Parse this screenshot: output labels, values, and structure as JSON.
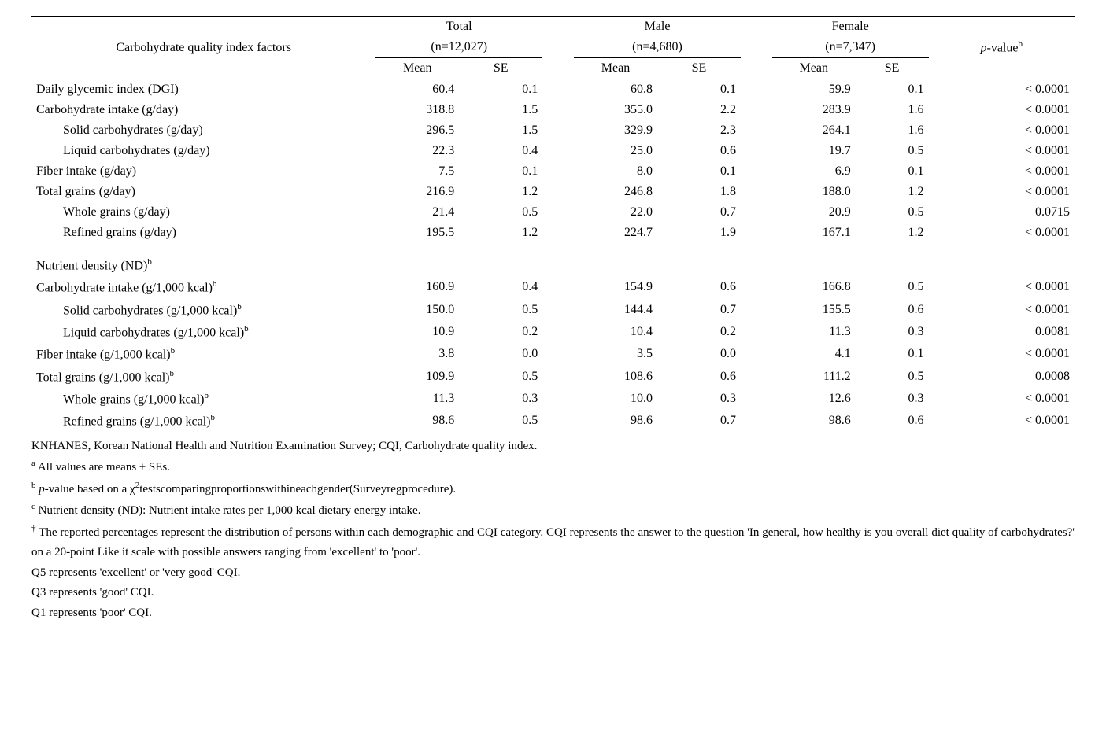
{
  "table": {
    "header": {
      "factors_label": "Carbohydrate quality index factors",
      "groups": {
        "total": {
          "name": "Total",
          "n": "(n=12,027)"
        },
        "male": {
          "name": "Male",
          "n": "(n=4,680)"
        },
        "female": {
          "name": "Female",
          "n": "(n=7,347)"
        }
      },
      "mean_label": "Mean",
      "se_label": "SE",
      "pvalue_label_prefix": "p",
      "pvalue_label_suffix": "-value",
      "pvalue_sup": "b"
    },
    "rows": [
      {
        "label": "Daily glycemic index (DGI)",
        "indent": 0,
        "sup": "",
        "t_m": "60.4",
        "t_s": "0.1",
        "m_m": "60.8",
        "m_s": "0.1",
        "f_m": "59.9",
        "f_s": "0.1",
        "p": "< 0.0001"
      },
      {
        "label": "Carbohydrate intake (g/day)",
        "indent": 0,
        "sup": "",
        "t_m": "318.8",
        "t_s": "1.5",
        "m_m": "355.0",
        "m_s": "2.2",
        "f_m": "283.9",
        "f_s": "1.6",
        "p": "< 0.0001"
      },
      {
        "label": "Solid carbohydrates (g/day)",
        "indent": 1,
        "sup": "",
        "t_m": "296.5",
        "t_s": "1.5",
        "m_m": "329.9",
        "m_s": "2.3",
        "f_m": "264.1",
        "f_s": "1.6",
        "p": "< 0.0001"
      },
      {
        "label": "Liquid carbohydrates (g/day)",
        "indent": 1,
        "sup": "",
        "t_m": "22.3",
        "t_s": "0.4",
        "m_m": "25.0",
        "m_s": "0.6",
        "f_m": "19.7",
        "f_s": "0.5",
        "p": "< 0.0001"
      },
      {
        "label": "Fiber intake (g/day)",
        "indent": 0,
        "sup": "",
        "t_m": "7.5",
        "t_s": "0.1",
        "m_m": "8.0",
        "m_s": "0.1",
        "f_m": "6.9",
        "f_s": "0.1",
        "p": "< 0.0001"
      },
      {
        "label": "Total grains (g/day)",
        "indent": 0,
        "sup": "",
        "t_m": "216.9",
        "t_s": "1.2",
        "m_m": "246.8",
        "m_s": "1.8",
        "f_m": "188.0",
        "f_s": "1.2",
        "p": "< 0.0001"
      },
      {
        "label": "Whole grains (g/day)",
        "indent": 1,
        "sup": "",
        "t_m": "21.4",
        "t_s": "0.5",
        "m_m": "22.0",
        "m_s": "0.7",
        "f_m": "20.9",
        "f_s": "0.5",
        "p": "0.0715"
      },
      {
        "label": "Refined grains (g/day)",
        "indent": 1,
        "sup": "",
        "t_m": "195.5",
        "t_s": "1.2",
        "m_m": "224.7",
        "m_s": "1.9",
        "f_m": "167.1",
        "f_s": "1.2",
        "p": "< 0.0001"
      }
    ],
    "section_header": {
      "label": "Nutrient density (ND)",
      "sup": "b"
    },
    "rows2": [
      {
        "label": "Carbohydrate intake (g/1,000    kcal)",
        "indent": 0,
        "sup": "b",
        "t_m": "160.9",
        "t_s": "0.4",
        "m_m": "154.9",
        "m_s": "0.6",
        "f_m": "166.8",
        "f_s": "0.5",
        "p": "< 0.0001"
      },
      {
        "label": "Solid carbohydrates (g/1,000 kcal)",
        "indent": 1,
        "sup": "b",
        "t_m": "150.0",
        "t_s": "0.5",
        "m_m": "144.4",
        "m_s": "0.7",
        "f_m": "155.5",
        "f_s": "0.6",
        "p": "< 0.0001"
      },
      {
        "label": "Liquid carbohydrates (g/1,000 kcal)",
        "indent": 1,
        "sup": "b",
        "t_m": "10.9",
        "t_s": "0.2",
        "m_m": "10.4",
        "m_s": "0.2",
        "f_m": "11.3",
        "f_s": "0.3",
        "p": "0.0081"
      },
      {
        "label": "Fiber intake (g/1,000 kcal)",
        "indent": 0,
        "sup": "b",
        "t_m": "3.8",
        "t_s": "0.0",
        "m_m": "3.5",
        "m_s": "0.0",
        "f_m": "4.1",
        "f_s": "0.1",
        "p": "< 0.0001"
      },
      {
        "label": "Total grains (g/1,000 kcal)",
        "indent": 0,
        "sup": "b",
        "t_m": "109.9",
        "t_s": "0.5",
        "m_m": "108.6",
        "m_s": "0.6",
        "f_m": "111.2",
        "f_s": "0.5",
        "p": "0.0008"
      },
      {
        "label": "Whole grains (g/1,000 kcal)",
        "indent": 1,
        "sup": "b",
        "t_m": "11.3",
        "t_s": "0.3",
        "m_m": "10.0",
        "m_s": "0.3",
        "f_m": "12.6",
        "f_s": "0.3",
        "p": "< 0.0001"
      },
      {
        "label": "Refined grains (g/1,000 kcal)",
        "indent": 1,
        "sup": "b",
        "t_m": "98.6",
        "t_s": "0.5",
        "m_m": "98.6",
        "m_s": "0.7",
        "f_m": "98.6",
        "f_s": "0.6",
        "p": "< 0.0001"
      }
    ]
  },
  "footnotes": {
    "l1": "KNHANES, Korean National   Health and Nutrition Examination Survey; CQI, Carbohydrate quality index.",
    "l2_sup": "a",
    "l2": " All values are means ± SEs.",
    "l3_sup": "b",
    "l3_pre": " ",
    "l3_p": "p",
    "l3_mid": "-value based on a ",
    "l3_chi": "χ",
    "l3_chisup": "2",
    "l3_tail": "testscomparingproportionswithineachgender(Surveyregprocedure).",
    "l4_sup": "c",
    "l4": " Nutrient density (ND):   Nutrient intake rates per 1,000 kcal dietary energy intake.",
    "l5_sup": "†",
    "l5": "  The reported percentages    represent the distribution of persons within each demographic and CQI   category. CQI represents the answer to the question 'In general, how healthy   is you overall diet quality of carbohydrates?' on a 20-point Like it scale   with possible answers ranging from 'excellent' to 'poor'.",
    "l6": "Q5 represents 'excellent' or   'very good' CQI.",
    "l7": "Q3 represents 'good' CQI.",
    "l8": "Q1 represents 'poor' CQI."
  },
  "layout": {
    "col_widths_pct": [
      33,
      8,
      8,
      3,
      8,
      8,
      3,
      8,
      7,
      14
    ],
    "text_color": "#000000",
    "background_color": "#ffffff",
    "border_color": "#000000",
    "font_size_body": 16,
    "font_size_footnotes": 15
  }
}
